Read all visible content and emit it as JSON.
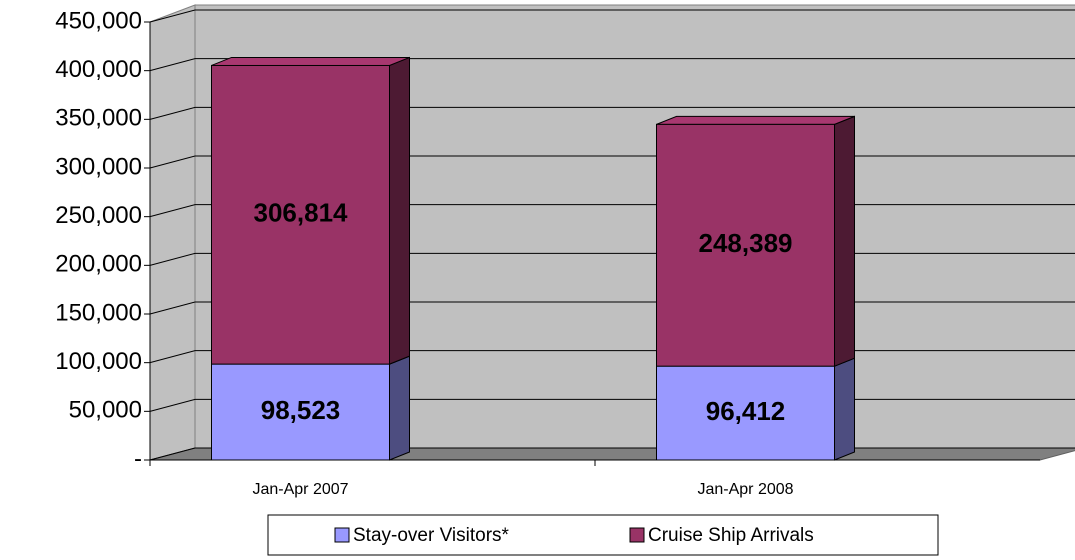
{
  "chart_data": {
    "type": "bar",
    "stacked": true,
    "three_d": true,
    "categories": [
      "Jan-Apr 2007",
      "Jan-Apr 2008"
    ],
    "series": [
      {
        "name": "Stay-over Visitors*",
        "color": "#9999ff",
        "values": [
          98523,
          96412
        ],
        "value_labels": [
          "98,523",
          "96,412"
        ]
      },
      {
        "name": "Cruise Ship Arrivals",
        "color": "#993366",
        "values": [
          306814,
          248389
        ],
        "value_labels": [
          "306,814",
          "248,389"
        ]
      }
    ],
    "ylim": [
      0,
      450000
    ],
    "yticks": [
      {
        "value": 0,
        "label": "-"
      },
      {
        "value": 50000,
        "label": "50,000"
      },
      {
        "value": 100000,
        "label": "100,000"
      },
      {
        "value": 150000,
        "label": "150,000"
      },
      {
        "value": 200000,
        "label": "200,000"
      },
      {
        "value": 250000,
        "label": "250,000"
      },
      {
        "value": 300000,
        "label": "300,000"
      },
      {
        "value": 350000,
        "label": "350,000"
      },
      {
        "value": 400000,
        "label": "400,000"
      },
      {
        "value": 450000,
        "label": "450,000"
      }
    ],
    "grid": true,
    "legend": "bottom"
  }
}
